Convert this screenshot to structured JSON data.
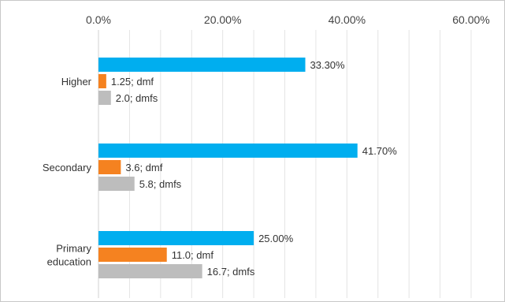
{
  "chart_data": {
    "type": "bar",
    "orientation": "horizontal",
    "title": "",
    "xlabel": "",
    "ylabel": "",
    "xlim": [
      0,
      60
    ],
    "x_ticks": [
      0,
      20,
      40,
      60
    ],
    "x_tick_labels": [
      "0.0%",
      "20.00%",
      "40.00%",
      "60.00%"
    ],
    "grid": true,
    "legend": "none",
    "categories": [
      "Higher",
      "Secondary",
      "Primary education"
    ],
    "series": [
      {
        "color": "#00aeef",
        "values": [
          33.3,
          41.7,
          25.0
        ],
        "labels": [
          "33.30%",
          "41.70%",
          "25.00%"
        ]
      },
      {
        "color": "#f58220",
        "values": [
          1.25,
          3.6,
          11.0
        ],
        "labels": [
          "1.25; dmf",
          "3.6; dmf",
          "11.0; dmf"
        ]
      },
      {
        "color": "#bdbdbd",
        "values": [
          2.0,
          5.8,
          16.7
        ],
        "labels": [
          "2.0; dmfs",
          "5.8; dmfs",
          "16.7; dmfs"
        ]
      }
    ]
  }
}
